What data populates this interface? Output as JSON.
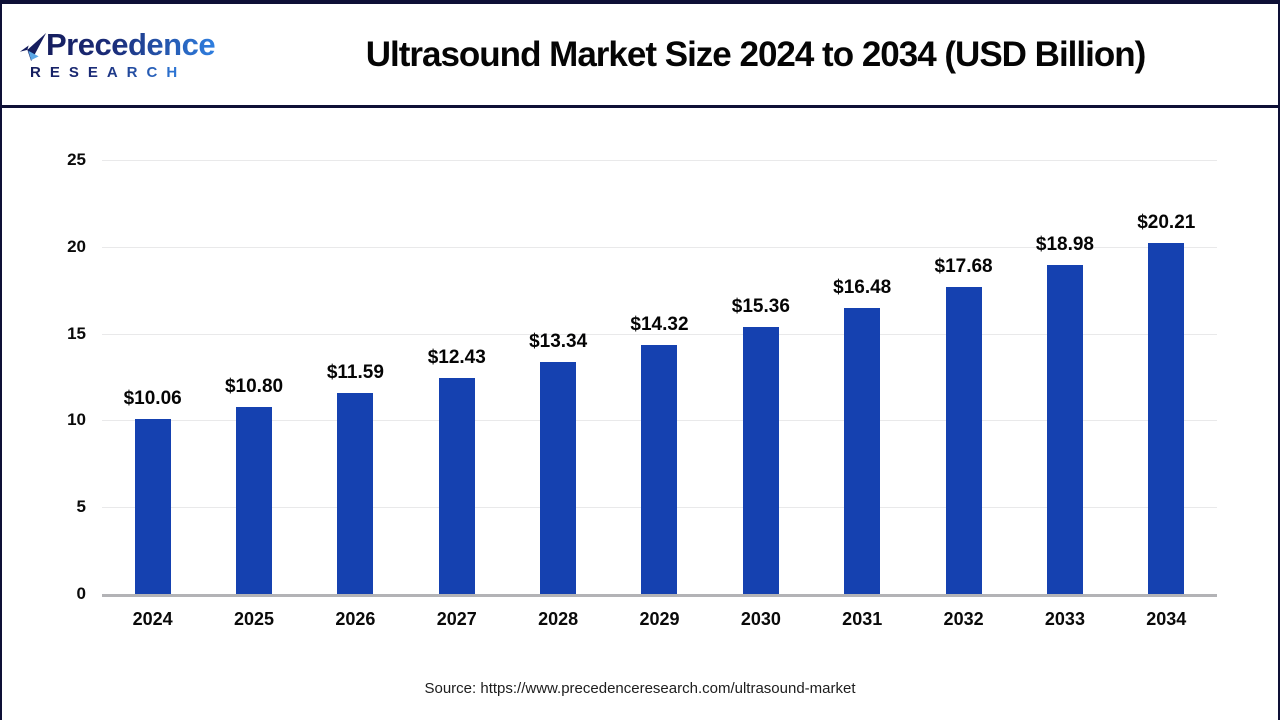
{
  "header": {
    "logo": {
      "name": "Precedence",
      "subtitle": "RESEARCH"
    },
    "title": "Ultrasound Market Size 2024 to 2034 (USD Billion)"
  },
  "chart_data": {
    "type": "bar",
    "title": "Ultrasound Market Size 2024 to 2034 (USD Billion)",
    "categories": [
      "2024",
      "2025",
      "2026",
      "2027",
      "2028",
      "2029",
      "2030",
      "2031",
      "2032",
      "2033",
      "2034"
    ],
    "values": [
      10.06,
      10.8,
      11.59,
      12.43,
      13.34,
      14.32,
      15.36,
      16.48,
      17.68,
      18.98,
      20.21
    ],
    "value_labels": [
      "$10.06",
      "$10.80",
      "$11.59",
      "$12.43",
      "$13.34",
      "$14.32",
      "$15.36",
      "$16.48",
      "$17.68",
      "$18.98",
      "$20.21"
    ],
    "xlabel": "",
    "ylabel": "",
    "ylim": [
      0,
      25
    ],
    "yticks": [
      0,
      5,
      10,
      15,
      20,
      25
    ],
    "grid": true,
    "legend_position": "none",
    "bar_color": "#1541b0"
  },
  "colors": {
    "bar": "#1541b0",
    "border_navy": "#0e1036",
    "gridline": "#e9e9ea",
    "baseline": "#b3b3b6",
    "logo_dark": "#151d5e",
    "logo_blue": "#2f7fe0"
  },
  "footer": {
    "source": "Source: https://www.precedenceresearch.com/ultrasound-market"
  }
}
